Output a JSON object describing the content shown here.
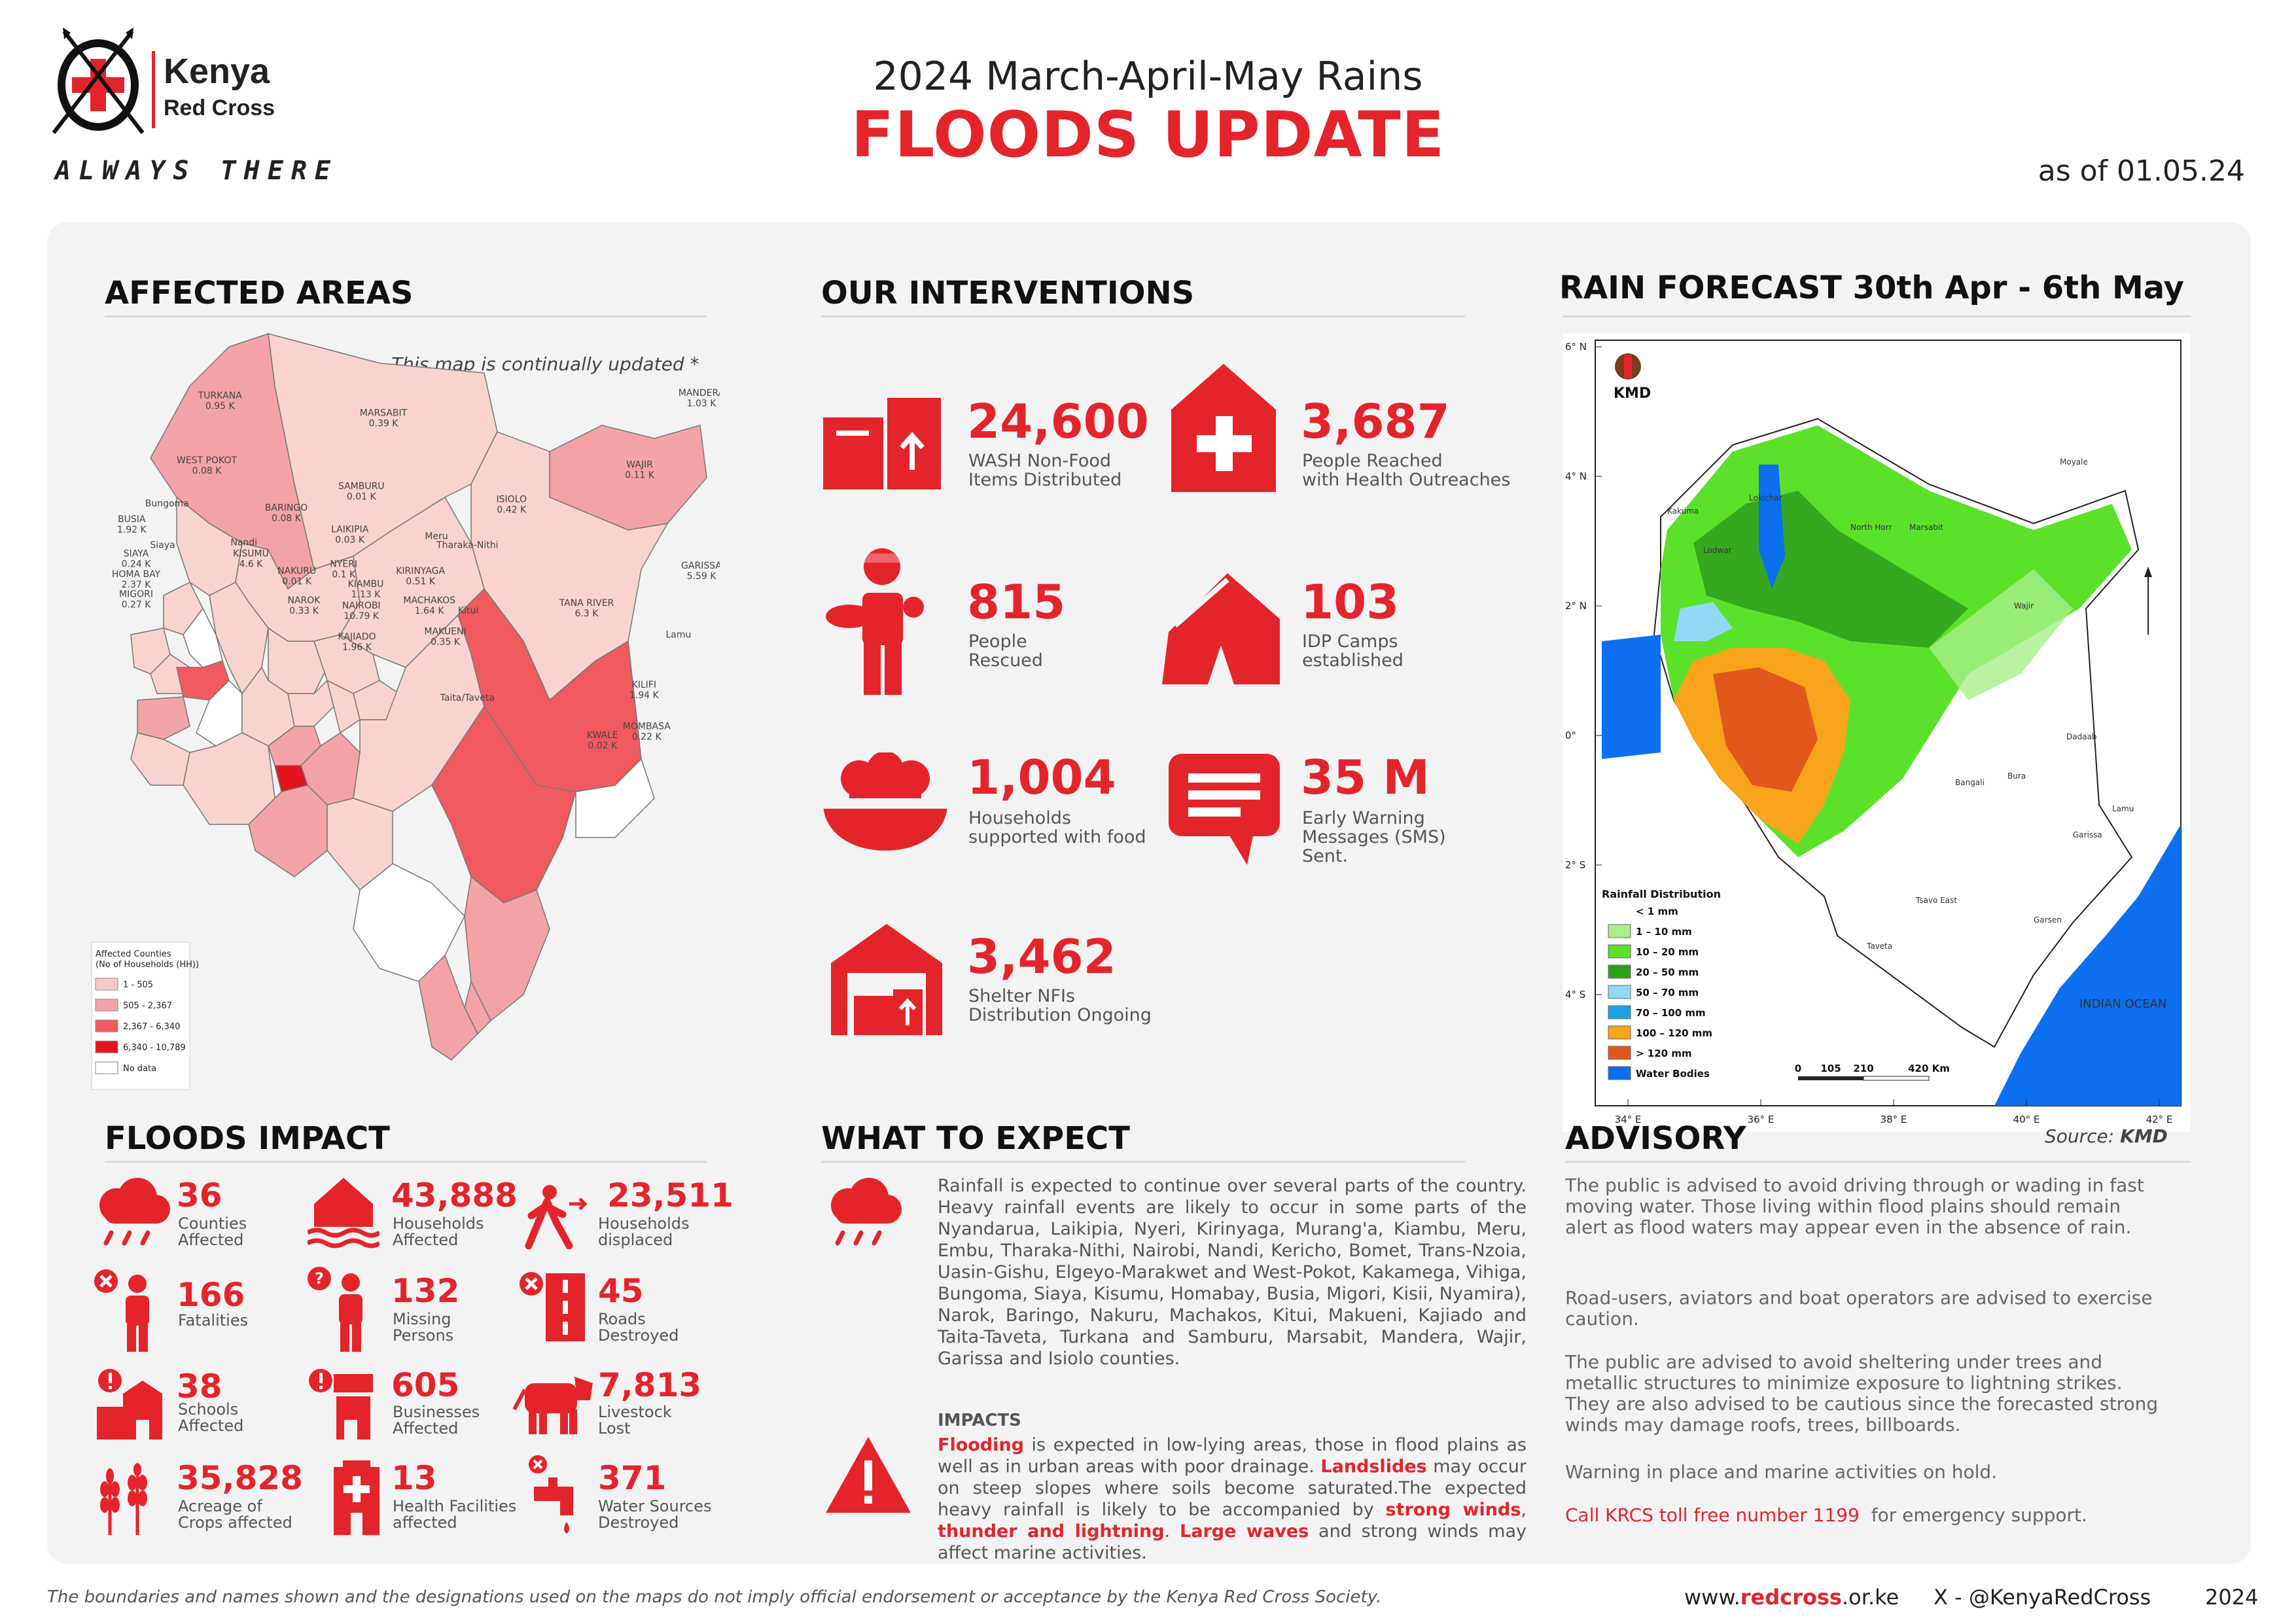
{
  "header": {
    "org_name": "Kenya",
    "org_sub": "Red Cross",
    "tagline": "ALWAYS THERE",
    "title_pre": "2024 March-April-May Rains",
    "title_main": "FLOODS UPDATE",
    "as_of": "as of 01.05.24"
  },
  "affected_areas": {
    "title": "AFFECTED AREAS",
    "note": "This map is continually updated *",
    "legend_title_1": "Affected Counties",
    "legend_title_2": "(No of Households (HH))",
    "legend": [
      {
        "label": "1 - 505",
        "color": "#f6c8cc"
      },
      {
        "label": "505 - 2,367",
        "color": "#f4a3a8"
      },
      {
        "label": "2,367 - 6,340",
        "color": "#f05a5e"
      },
      {
        "label": "6,340 - 10,789",
        "color": "#e4141c"
      },
      {
        "label": "No data",
        "color": "#ffffff"
      }
    ],
    "counties": [
      {
        "name": "TURKANA",
        "value": "0.95 K"
      },
      {
        "name": "MARSABIT",
        "value": "0.39 K"
      },
      {
        "name": "MANDERA",
        "value": "1.03 K"
      },
      {
        "name": "WEST POKOT",
        "value": "0.08 K"
      },
      {
        "name": "WAJIR",
        "value": "0.11 K"
      },
      {
        "name": "SAMBURU",
        "value": "0.01 K"
      },
      {
        "name": "ISIOLO",
        "value": "0.42 K"
      },
      {
        "name": "Bungoma",
        "value": ""
      },
      {
        "name": "BARINGO",
        "value": "0.08 K"
      },
      {
        "name": "BUSIA",
        "value": "1.92 K"
      },
      {
        "name": "LAIKIPIA",
        "value": "0.03 K"
      },
      {
        "name": "Meru",
        "value": ""
      },
      {
        "name": "Tharaka-Nithi",
        "value": ""
      },
      {
        "name": "Siaya",
        "value": ""
      },
      {
        "name": "Nandi",
        "value": ""
      },
      {
        "name": "KISUMU",
        "value": "4.6 K"
      },
      {
        "name": "SIAYA",
        "value": "0.24 K"
      },
      {
        "name": "HOMA BAY",
        "value": "2.37 K"
      },
      {
        "name": "NAKURU",
        "value": "0.01 K"
      },
      {
        "name": "NYERI",
        "value": "0.1 K"
      },
      {
        "name": "KIRINYAGA",
        "value": "0.51 K"
      },
      {
        "name": "GARISSA",
        "value": "5.59 K"
      },
      {
        "name": "MIGORI",
        "value": "0.27 K"
      },
      {
        "name": "NAROK",
        "value": "0.33 K"
      },
      {
        "name": "KIAMBU",
        "value": "1.13 K"
      },
      {
        "name": "NAIROBI",
        "value": "10.79 K"
      },
      {
        "name": "MACHAKOS",
        "value": "1.64 K"
      },
      {
        "name": "Kitui",
        "value": ""
      },
      {
        "name": "TANA RIVER",
        "value": "6.3 K"
      },
      {
        "name": "KAJIADO",
        "value": "1.96 K"
      },
      {
        "name": "MAKUENI",
        "value": "0.35 K"
      },
      {
        "name": "Lamu",
        "value": ""
      },
      {
        "name": "Taita/Taveta",
        "value": ""
      },
      {
        "name": "KILIFI",
        "value": "1.94 K"
      },
      {
        "name": "MOMBASA",
        "value": "0.22 K"
      },
      {
        "name": "KWALE",
        "value": "0.02 K"
      }
    ]
  },
  "interventions": {
    "title": "OUR INTERVENTIONS",
    "items": [
      {
        "value": "24,600",
        "label": "WASH Non-Food\nItems Distributed",
        "icon": "wash-kit-icon"
      },
      {
        "value": "3,687",
        "label": "People Reached\nwith Health Outreaches",
        "icon": "health-house-icon"
      },
      {
        "value": "815",
        "label": "People\nRescued",
        "icon": "rescuer-icon"
      },
      {
        "value": "103",
        "label": "IDP Camps\nestablished",
        "icon": "tent-icon"
      },
      {
        "value": "1,004",
        "label": "Households\nsupported with food",
        "icon": "food-bowl-icon"
      },
      {
        "value": "35 M",
        "label": "Early Warning\nMessages (SMS)\nSent.",
        "icon": "message-icon"
      },
      {
        "value": "3,462",
        "label": "Shelter NFIs\nDistribution Ongoing",
        "icon": "warehouse-icon"
      }
    ]
  },
  "forecast": {
    "title": "RAIN FORECAST 30th Apr - 6th May",
    "source_label": "Source:",
    "source": "KMD",
    "kmd_label": "KMD",
    "legend_title": "Rainfall Distribution",
    "legend": [
      {
        "label": "< 1 mm",
        "color": "#ffffff"
      },
      {
        "label": "1 – 10 mm",
        "color": "#a7f08a"
      },
      {
        "label": "10 – 20 mm",
        "color": "#5ce12b"
      },
      {
        "label": "20 – 50 mm",
        "color": "#2f9e1d"
      },
      {
        "label": "50 – 70 mm",
        "color": "#8fd9f5"
      },
      {
        "label": "70 – 100 mm",
        "color": "#1fa1e6"
      },
      {
        "label": "100 – 120 mm",
        "color": "#f7a41c"
      },
      {
        "label": "> 120 mm",
        "color": "#e2581c"
      },
      {
        "label": "Water Bodies",
        "color": "#0b6ff0"
      }
    ],
    "lat_ticks": [
      "6° N",
      "4° N",
      "2° N",
      "0°",
      "2° S",
      "4° S"
    ],
    "lon_ticks": [
      "34° E",
      "36° E",
      "38° E",
      "40° E",
      "42° E"
    ],
    "scale_ticks": [
      "0",
      "105",
      "210",
      "420 Km"
    ],
    "places": [
      "Lodwar",
      "Kakuma",
      "Lokichar",
      "Moyale",
      "Marsabit",
      "North Horr",
      "Wajir",
      "Dadaab",
      "Garissa",
      "Bura",
      "Bangali",
      "Lamu",
      "Garsen",
      "Tsavo East",
      "Taveta",
      "INDIAN OCEAN"
    ]
  },
  "impact": {
    "title": "FLOODS IMPACT",
    "items": [
      {
        "value": "36",
        "label": "Counties\nAffected",
        "icon": "rain-cloud-icon"
      },
      {
        "value": "43,888",
        "label": "Households\nAffected",
        "icon": "flooded-house-icon"
      },
      {
        "value": "23,511",
        "label": "Households\ndisplaced",
        "icon": "running-person-icon"
      },
      {
        "value": "166",
        "label": "Fatalities",
        "icon": "fatality-person-icon"
      },
      {
        "value": "132",
        "label": "Missing\nPersons",
        "icon": "missing-person-icon"
      },
      {
        "value": "45",
        "label": "Roads\nDestroyed",
        "icon": "road-icon"
      },
      {
        "value": "38",
        "label": "Schools\nAffected",
        "icon": "school-icon"
      },
      {
        "value": "605",
        "label": "Businesses\nAffected",
        "icon": "shop-icon"
      },
      {
        "value": "7,813",
        "label": "Livestock\nLost",
        "icon": "cow-icon"
      },
      {
        "value": "35,828",
        "label": "Acreage of\nCrops affected",
        "icon": "crops-icon"
      },
      {
        "value": "13",
        "label": "Health Facilities\naffected",
        "icon": "health-facility-icon"
      },
      {
        "value": "371",
        "label": "Water Sources\nDestroyed",
        "icon": "water-tap-icon"
      }
    ]
  },
  "expect": {
    "title": "WHAT TO EXPECT",
    "body": "Rainfall is expected to continue over several parts of the country. Heavy rainfall events are likely to occur in some parts of the Nyandarua, Laikipia, Nyeri, Kirinyaga, Murang'a, Kiambu, Meru, Embu, Tharaka-Nithi, Nairobi, Nandi, Kericho, Bomet, Trans-Nzoia, Uasin-Gishu, Elgeyo-Marakwet and West-Pokot, Kakamega, Vihiga, Bungoma, Siaya, Kisumu, Homabay, Busia, Migori, Kisii, Nyamira), Narok, Baringo, Nakuru, Machakos, Kitui, Makueni, Kajiado and Taita-Taveta, Turkana and Samburu, Marsabit, Mandera, Wajir, Garissa and Isiolo counties.",
    "impacts_title": "IMPACTS",
    "impacts": {
      "w1": "Flooding",
      "t1": " is expected in low-lying areas, those in flood plains as well as in urban areas with poor drainage. ",
      "w2": "Landslides",
      "t2": " may occur on steep slopes where soils become saturated.The expected heavy rainfall is likely to be accompanied by ",
      "w3": "strong winds",
      "t3": ", ",
      "w4": "thunder and lightning",
      "t4": ". ",
      "w5": "Large waves",
      "t5": " and strong winds may affect marine activities."
    }
  },
  "advisory": {
    "title": "ADVISORY",
    "paragraphs": [
      "The public is advised to avoid driving through or wading in fast moving water. Those living within flood plains should remain alert as flood waters may appear even in the absence of rain.",
      "Road-users, aviators and boat operators are advised to exercise caution.",
      "The public are advised to avoid sheltering under trees and metallic structures to minimize exposure to lightning strikes. They are also advised to be cautious since the forecasted strong winds may damage roofs, trees, billboards.",
      "Warning in place and marine activities on hold."
    ],
    "call": "Call KRCS toll free number 1199",
    "call_tail": "  for emergency support."
  },
  "footer": {
    "disclaimer": "The boundaries and names shown and the designations used on the maps do not imply official endorsement or acceptance by the Kenya Red Cross Society.",
    "web_pre": "www.",
    "web_brand": "redcross",
    "web_post": ".or.ke",
    "x_handle": "X -  @KenyaRedCross",
    "year": "2024"
  },
  "colors": {
    "accent": "#e4242b",
    "panel": "#f3f3f3"
  }
}
